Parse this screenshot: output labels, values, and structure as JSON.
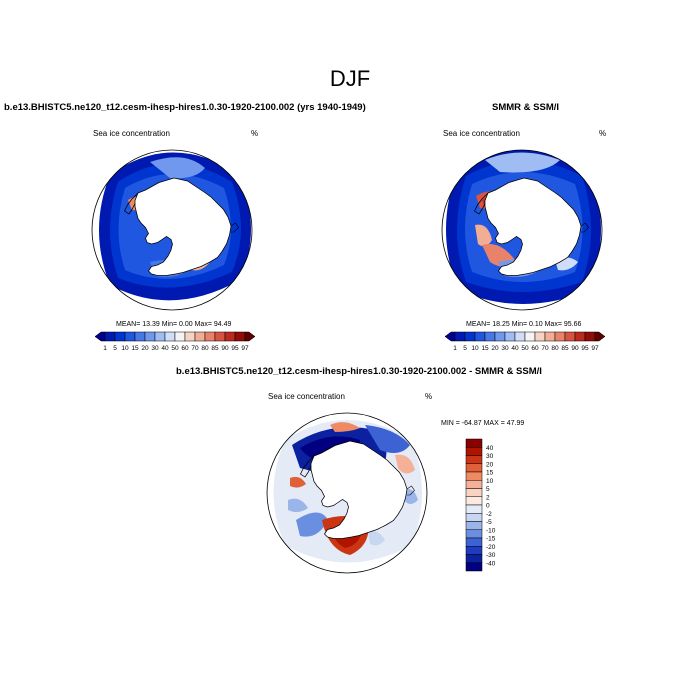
{
  "title": "DJF",
  "panels": {
    "model": {
      "header": "b.e13.BHISTC5.ne120_t12.cesm-ihesp-hires1.0.30-1920-2100.002 (yrs 1940-1949)",
      "label_left": "Sea ice concentration",
      "label_right": "%",
      "stats": "MEAN=  13.39  Min=    0.00  Max=   94.49"
    },
    "obs": {
      "header": "SMMR & SSM/I",
      "label_left": "Sea ice concentration",
      "label_right": "%",
      "stats": "MEAN=  18.25  Min=    0.10  Max=   95.66"
    },
    "diff": {
      "header": "b.e13.BHISTC5.ne120_t12.cesm-ihesp-hires1.0.30-1920-2100.002 - SMMR & SSM/I",
      "label_left": "Sea ice concentration",
      "label_right": "%",
      "stats": "MIN = -64.87 MAX =  47.99"
    }
  },
  "conc_colorbar": {
    "labels": [
      "1",
      "5",
      "10",
      "15",
      "20",
      "30",
      "40",
      "50",
      "60",
      "70",
      "80",
      "85",
      "90",
      "95",
      "97"
    ],
    "colors": [
      "#00008f",
      "#0019b0",
      "#0035cf",
      "#2057e0",
      "#4678e8",
      "#6f98ee",
      "#9fbcf3",
      "#cfddf8",
      "#f4f4f4",
      "#f7d3c4",
      "#f1ae94",
      "#e8826a",
      "#d85441",
      "#bb2a1c",
      "#8f0d06",
      "#5e0000"
    ]
  },
  "diff_colorbar": {
    "labels": [
      "40",
      "30",
      "20",
      "15",
      "10",
      "5",
      "2",
      "0",
      "-2",
      "-5",
      "-10",
      "-15",
      "-20",
      "-30",
      "-40"
    ],
    "colors": [
      "#8b0000",
      "#b01400",
      "#cc3513",
      "#e06037",
      "#ef8a62",
      "#f5b196",
      "#fad4c3",
      "#fbeae2",
      "#e4ebf7",
      "#c7d6f1",
      "#9bb5ea",
      "#6a8fe0",
      "#3d62d4",
      "#1f3bbf",
      "#0b21a0",
      "#000080"
    ]
  }
}
